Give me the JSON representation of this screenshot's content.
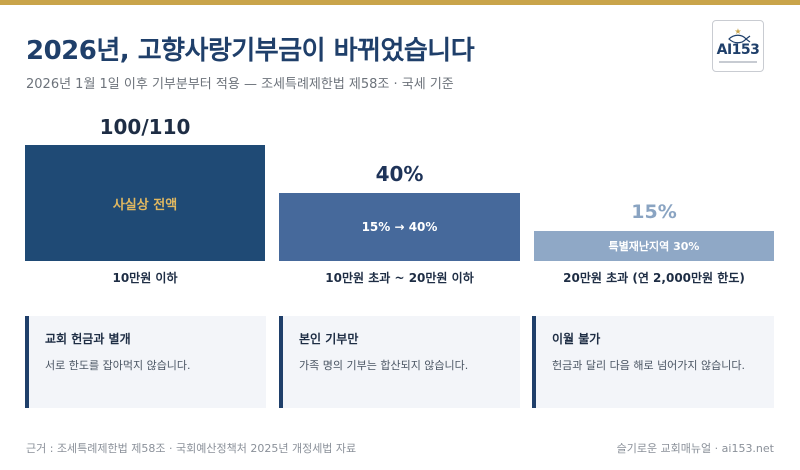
{
  "header": {
    "title": "2026년, 고향사랑기부금이 바뀌었습니다",
    "subtitle": "2026년 1월 1일 이후 기부분부터 적용 — 조세특례제한법 제58조 · 국세 기준"
  },
  "logo": {
    "text": "AI153",
    "icon": "fish-icon"
  },
  "tiers": [
    {
      "value": "100/110",
      "bar_text": "사실상 전액",
      "label": "10만원 이하",
      "rate_shown": 1.0
    },
    {
      "value": "40%",
      "bar_text": "15% → 40%",
      "label": "10만원 초과 ~ 20만원 이하",
      "rate_shown": 0.4
    },
    {
      "value": "15%",
      "bar_text": "특별재난지역 30%",
      "label": "20만원 초과 (연 2,000만원 한도)",
      "rate_shown": 0.15
    }
  ],
  "cards": [
    {
      "title": "교회 헌금과 별개",
      "body": "서로 한도를 잡아먹지 않습니다."
    },
    {
      "title": "본인 기부만",
      "body": "가족 명의 기부는 합산되지 않습니다."
    },
    {
      "title": "이월 불가",
      "body": "헌금과 달리 다음 해로 넘어가지 않습니다."
    }
  ],
  "footer": {
    "source": "근거 : 조세특례제한법 제58조 · 국회예산정책처 2025년 개정세법 자료",
    "credit": "슬기로운 교회매뉴얼 · ai153.net"
  },
  "colors": {
    "accent_gold": "#c9a44a",
    "navy": "#1f4a75",
    "mid_blue": "#46699b",
    "light_blue": "#8fa8c6"
  }
}
